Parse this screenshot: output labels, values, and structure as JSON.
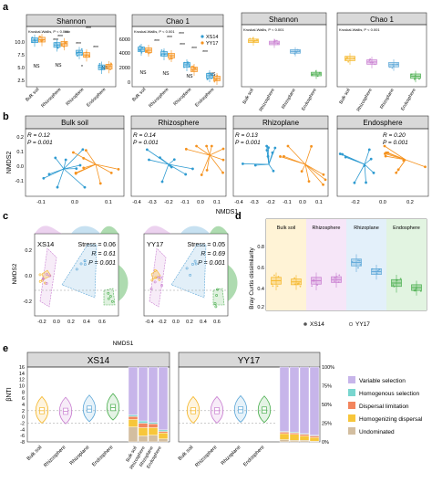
{
  "panel_letters": {
    "a": "a",
    "b": "b",
    "c": "c",
    "d": "d",
    "e": "e"
  },
  "colors": {
    "xs14": "#2f9bd1",
    "yy17": "#f5921e",
    "bulk": "#f5b72a",
    "rhizosphere": "#c97fd1",
    "rhizoplane": "#5fa8d8",
    "endosphere": "#4caf50",
    "variable_selection": "#c7b5ea",
    "homogenous_selection": "#79d6cf",
    "dispersal_limitation": "#f3855d",
    "homogenizing_dispersal": "#f7c63a",
    "undominated": "#d3bea0"
  },
  "chart_data": [
    {
      "id": "a-shannon-genotype",
      "type": "box",
      "title": "Shannon",
      "annotation": "Kruskal-Wallis, P < 0.001",
      "categories": [
        "Bulk soil",
        "Rhizosphere",
        "Rhizoplane",
        "Endosphere"
      ],
      "yticks": [
        "2.5",
        "5.0",
        "7.5",
        "10.0"
      ],
      "ylim": [
        2.5,
        11.5
      ],
      "series": [
        {
          "name": "XS14",
          "medians": [
            10.4,
            9.6,
            8.3,
            5.8
          ]
        },
        {
          "name": "YY17",
          "medians": [
            10.5,
            9.8,
            7.9,
            5.9
          ]
        }
      ],
      "pair_labels": [
        "NS",
        "NS",
        "*",
        "NS"
      ],
      "sig_labels": [
        "***",
        "***",
        "***",
        "***",
        "***",
        "***"
      ]
    },
    {
      "id": "a-chao1-genotype",
      "type": "box",
      "title": "Chao 1",
      "annotation": "Kruskal-Wallis, P < 0.001",
      "categories": [
        "Bulk soil",
        "Rhizosphere",
        "Rhizoplane",
        "Endosphere"
      ],
      "yticks": [
        "0",
        "2000",
        "4000",
        "6000"
      ],
      "ylim": [
        0,
        6000
      ],
      "series": [
        {
          "name": "XS14",
          "medians": [
            3800,
            3300,
            2100,
            900
          ]
        },
        {
          "name": "YY17",
          "medians": [
            3700,
            3100,
            1600,
            600
          ]
        }
      ],
      "pair_labels": [
        "NS",
        "NS",
        "NS",
        "NS"
      ],
      "sig_labels": [
        "***",
        "***",
        "***",
        "***",
        "***",
        "***"
      ],
      "legend": [
        "XS14",
        "YY17"
      ]
    },
    {
      "id": "a-shannon-compartment",
      "type": "box",
      "title": "Shannon",
      "annotation": "Kruskal-Wallis, P < 0.001",
      "categories": [
        "Bulk soil",
        "Rhizosphere",
        "Rhizoplane",
        "Endosphere"
      ],
      "values": [
        10.5,
        10.2,
        9.0,
        5.8
      ],
      "ylim": [
        4,
        11.5
      ]
    },
    {
      "id": "a-chao1-compartment",
      "type": "box",
      "title": "Chao 1",
      "annotation": "Kruskal-Wallis, P < 0.001",
      "categories": [
        "Bulk soil",
        "Rhizosphere",
        "Rhizoplane",
        "Endosphere"
      ],
      "values": [
        3200,
        2800,
        2500,
        1200
      ],
      "ylim": [
        0,
        6000
      ]
    },
    {
      "id": "b-nmds",
      "type": "scatter",
      "ylabel": "NMDS2",
      "xlabel": "NMDS1",
      "panels": [
        {
          "title": "Bulk soil",
          "R": "R = 0.12",
          "P": "P = 0.001",
          "xticks": [
            "-0.1",
            "0.0",
            "0.1"
          ],
          "yticks": [
            "0.2",
            "0.1",
            "0.0",
            "-0.1"
          ]
        },
        {
          "title": "Rhizosphere",
          "R": "R = 0.14",
          "P": "P = 0.001",
          "xticks": [
            "-0.4",
            "-0.3",
            "-0.2",
            "-0.1",
            "0.0",
            "0.1"
          ]
        },
        {
          "title": "Rhizoplane",
          "R": "R = 0.13",
          "P": "P = 0.001",
          "xticks": [
            "-0.4",
            "-0.3",
            "-0.2",
            "-0.1",
            "0.0",
            "0.1"
          ]
        },
        {
          "title": "Endosphere",
          "R": "R = 0.20",
          "P": "P = 0.001",
          "xticks": [
            "-0.2",
            "0.0",
            "0.2"
          ]
        }
      ]
    },
    {
      "id": "c-nmds",
      "type": "scatter",
      "ylabel": "NMDS2",
      "xlabel": "NMDS1",
      "panels": [
        {
          "name": "XS14",
          "stress": "Stress = 0.06",
          "R": "R = 0.61",
          "P": "P = 0.001",
          "xticks": [
            "-0.2",
            "0.0",
            "0.2",
            "0.4",
            "0.6"
          ]
        },
        {
          "name": "YY17",
          "stress": "Stress = 0.05",
          "R": "R = 0.69",
          "P": "P = 0.001",
          "xticks": [
            "-0.4",
            "-0.2",
            "0.0",
            "0.2",
            "0.4",
            "0.6"
          ]
        }
      ],
      "yticks": [
        "0.2",
        "0.0",
        "-0.2"
      ]
    },
    {
      "id": "d-braycurtis",
      "type": "box",
      "ylabel": "Bray Curtis dissimilarity",
      "groups": [
        "Bulk soil",
        "Rhizosphere",
        "Rhizoplane",
        "Endosphere"
      ],
      "yticks": [
        "0.2",
        "0.4",
        "0.6",
        "0.8"
      ],
      "ylim": [
        0.1,
        0.9
      ],
      "series": [
        {
          "name": "XS14",
          "medians": [
            0.36,
            0.36,
            0.52,
            0.34
          ]
        },
        {
          "name": "YY17",
          "medians": [
            0.35,
            0.37,
            0.44,
            0.3
          ]
        }
      ],
      "legend": [
        "XS14",
        "YY17"
      ]
    },
    {
      "id": "e-bnti",
      "type": "violin+stacked-bar",
      "ylabel": "βNTI",
      "yticks": [
        "-8",
        "-6",
        "-4",
        "-2",
        "0",
        "2",
        "4",
        "6",
        "8",
        "10",
        "12",
        "14",
        "16"
      ],
      "ylim": [
        -8,
        16
      ],
      "y2ticks": [
        "0%",
        "25%",
        "50%",
        "75%",
        "100%"
      ],
      "panels": [
        {
          "title": "XS14",
          "medians": [
            2.0,
            1.8,
            2.5,
            3.0
          ]
        },
        {
          "title": "YY17",
          "medians": [
            2.0,
            2.0,
            2.3,
            2.2
          ]
        }
      ],
      "categories": [
        "Bulk soil",
        "Rhizosphere",
        "Rhizoplane",
        "Endosphere"
      ],
      "stacked": {
        "XS14": [
          {
            "variable": 64,
            "homogenous": 2,
            "dispersal": 4,
            "homogenizing": 10,
            "undominated": 20
          },
          {
            "variable": 72,
            "homogenous": 3,
            "dispersal": 6,
            "homogenizing": 11,
            "undominated": 8
          },
          {
            "variable": 74,
            "homogenous": 2,
            "dispersal": 5,
            "homogenizing": 10,
            "undominated": 9
          },
          {
            "variable": 84,
            "homogenous": 2,
            "dispersal": 2,
            "homogenizing": 8,
            "undominated": 4
          }
        ],
        "YY17": [
          {
            "variable": 86,
            "homogenous": 1,
            "dispersal": 2,
            "homogenizing": 8,
            "undominated": 3
          },
          {
            "variable": 87,
            "homogenous": 1,
            "dispersal": 2,
            "homogenizing": 8,
            "undominated": 2
          },
          {
            "variable": 89,
            "homogenous": 1,
            "dispersal": 2,
            "homogenizing": 6,
            "undominated": 2
          },
          {
            "variable": 91,
            "homogenous": 1,
            "dispersal": 2,
            "homogenizing": 5,
            "undominated": 1
          }
        ]
      },
      "legend": [
        "Variable selection",
        "Homogenous selection",
        "Dispersal limitation",
        "Homogenizing dispersal",
        "Undominated"
      ]
    }
  ]
}
